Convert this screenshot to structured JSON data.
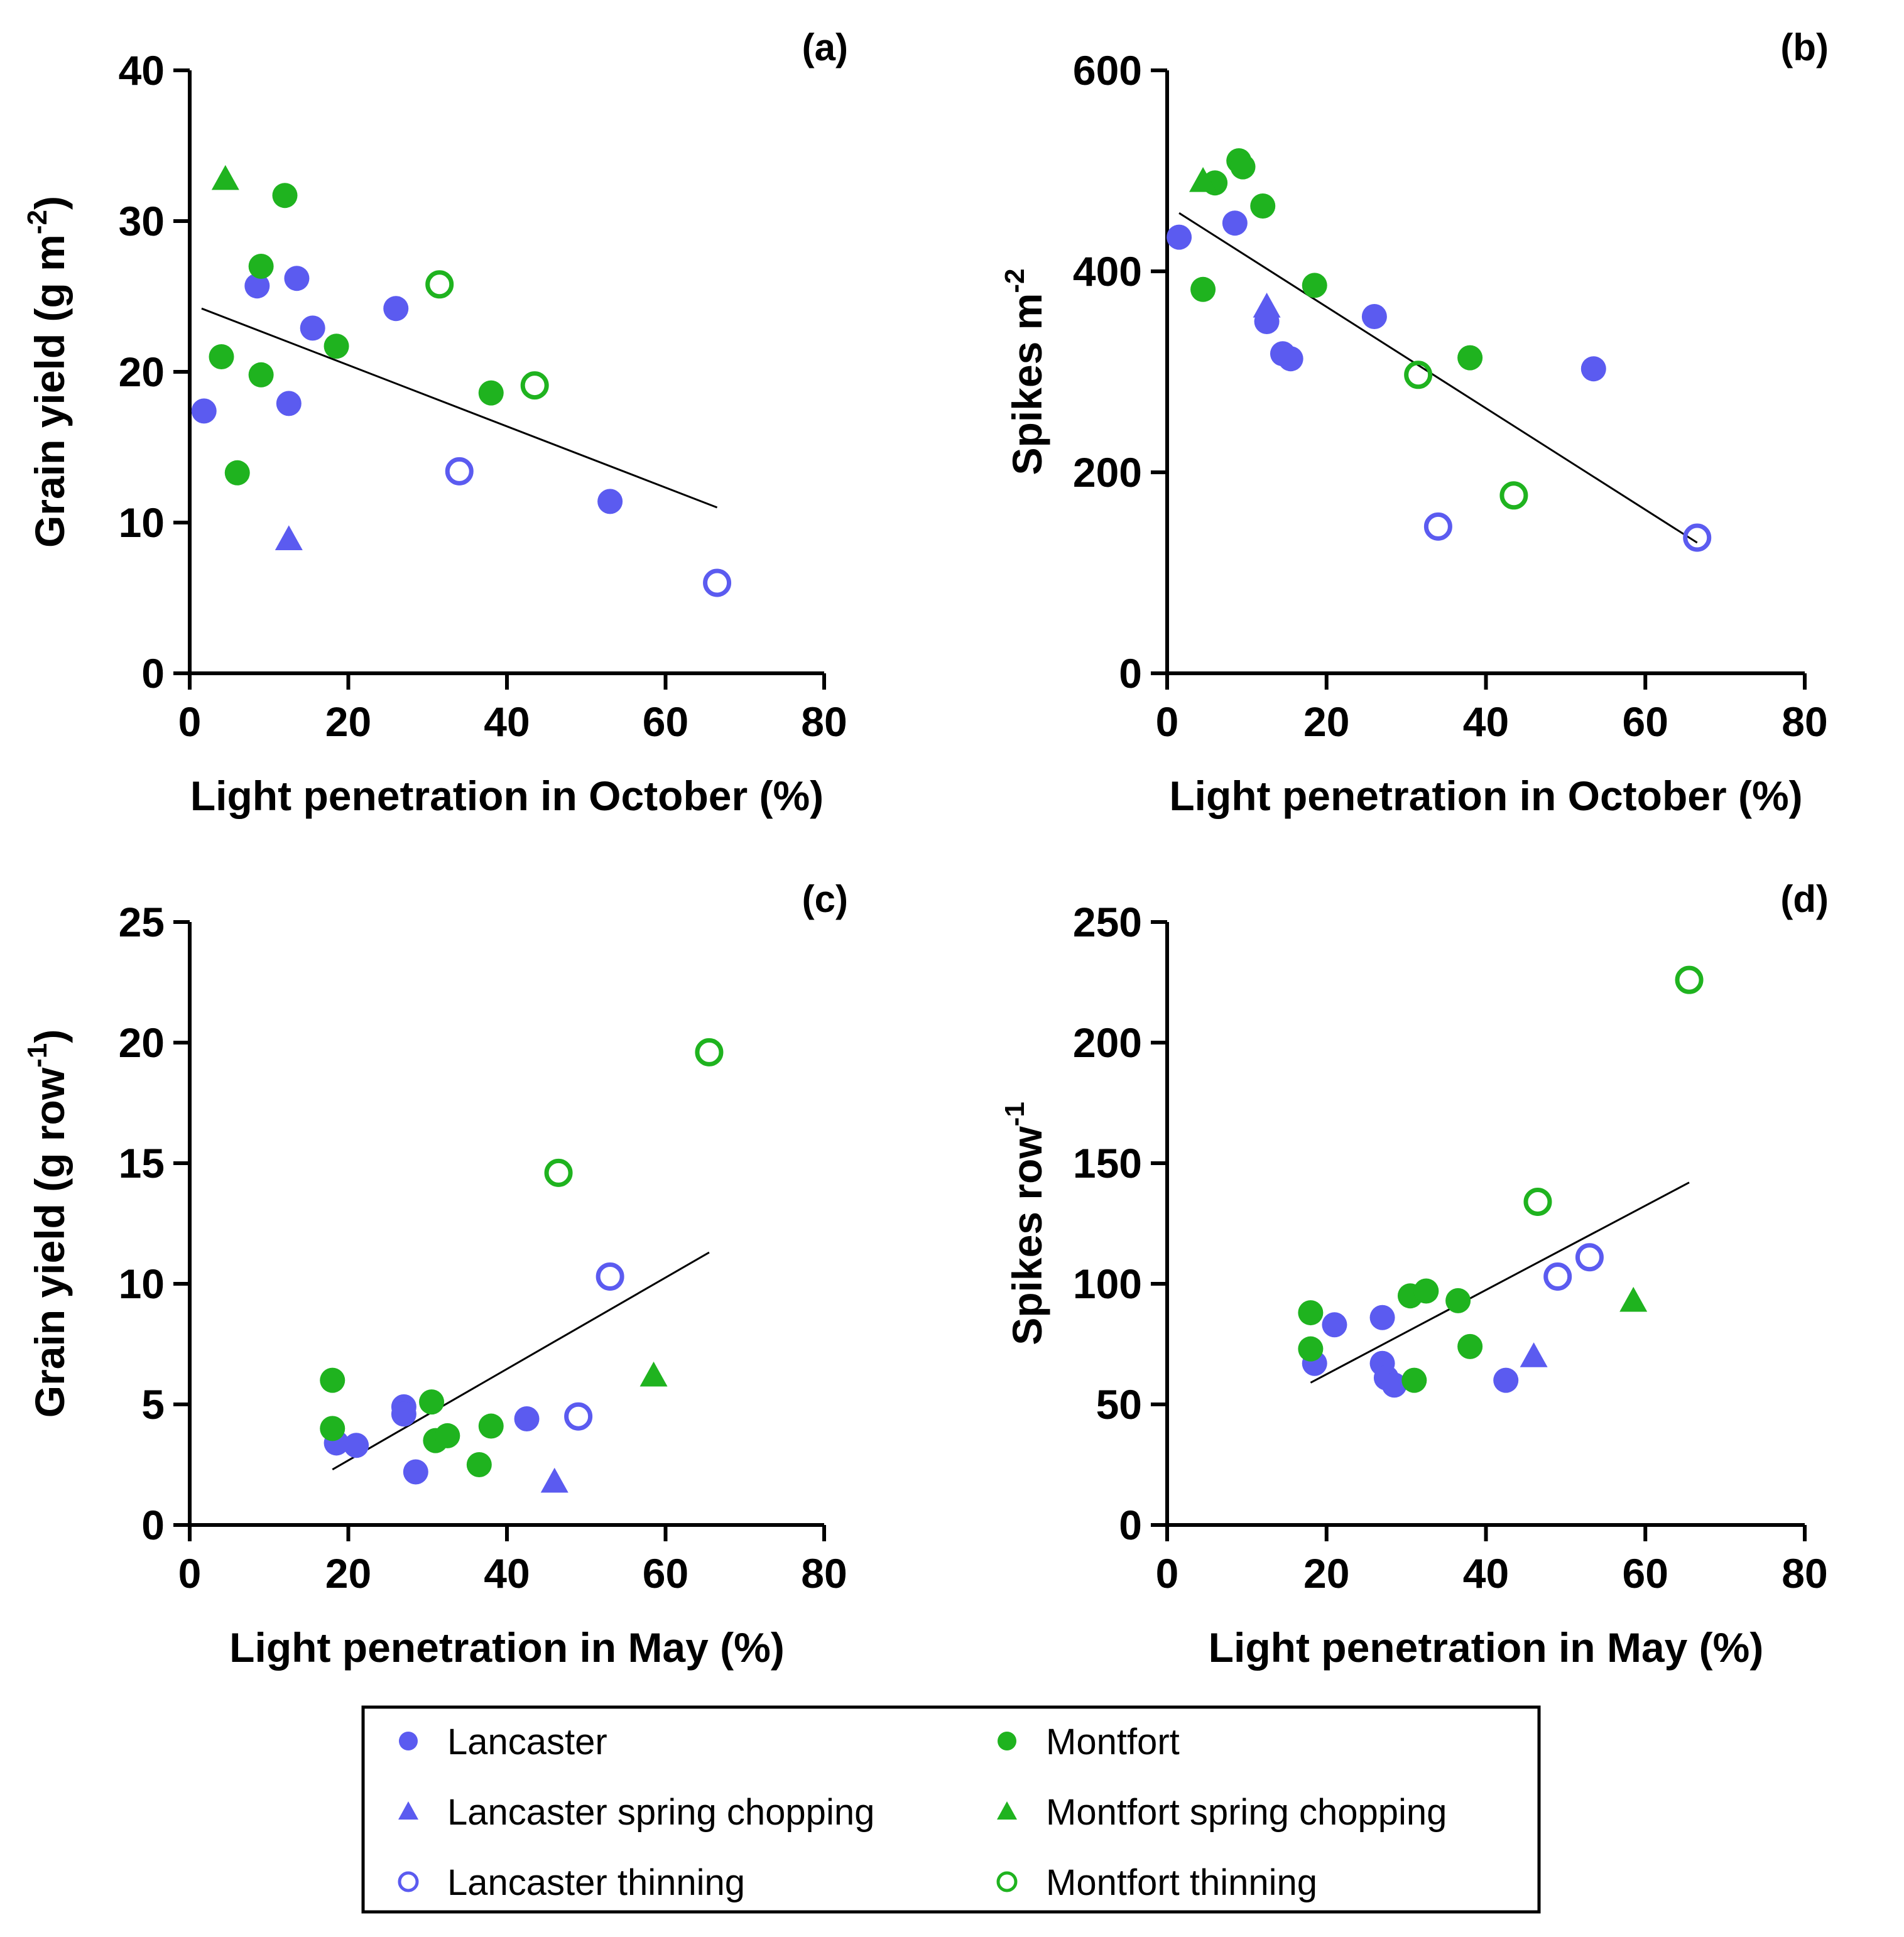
{
  "colors": {
    "lancaster": "#5b5bf0",
    "montfort": "#1fb31f",
    "axis": "#000000",
    "trend": "#000000"
  },
  "legend": {
    "entries": [
      {
        "key": "lancaster",
        "label": "Lancaster",
        "marker": "circle-filled",
        "color": "#5b5bf0"
      },
      {
        "key": "montfort",
        "label": "Montfort",
        "marker": "circle-filled",
        "color": "#1fb31f"
      },
      {
        "key": "lancaster_spring",
        "label": "Lancaster spring chopping",
        "marker": "triangle",
        "color": "#5b5bf0"
      },
      {
        "key": "montfort_spring",
        "label": "Montfort spring chopping",
        "marker": "triangle",
        "color": "#1fb31f"
      },
      {
        "key": "lancaster_thin",
        "label": "Lancaster thinning",
        "marker": "circle-open",
        "color": "#5b5bf0"
      },
      {
        "key": "montfort_thin",
        "label": "Montfort thinning",
        "marker": "circle-open",
        "color": "#1fb31f"
      }
    ]
  },
  "chart_data": [
    {
      "type": "scatter",
      "panel": "(a)",
      "xlabel": "Light penetration in October (%)",
      "ylabel_main": "Grain yield (g m",
      "ylabel_sup": "-2",
      "ylabel_end": ")",
      "xlim": [
        0,
        80
      ],
      "ylim": [
        0,
        40
      ],
      "xticks": [
        0,
        20,
        40,
        60,
        80
      ],
      "yticks": [
        0,
        10,
        20,
        30,
        40
      ],
      "trend": {
        "x": [
          1.5,
          66.5
        ],
        "y": [
          24.2,
          11.0
        ]
      },
      "series": [
        {
          "key": "lancaster",
          "points": [
            [
              1.8,
              17.4
            ],
            [
              8.5,
              25.7
            ],
            [
              13.5,
              26.2
            ],
            [
              15.5,
              22.9
            ],
            [
              12.5,
              17.9
            ],
            [
              26,
              24.2
            ],
            [
              53,
              11.4
            ]
          ]
        },
        {
          "key": "montfort",
          "points": [
            [
              12,
              31.7
            ],
            [
              9,
              27.0
            ],
            [
              4,
              21.0
            ],
            [
              9,
              19.8
            ],
            [
              18.5,
              21.7
            ],
            [
              6,
              13.3
            ],
            [
              38,
              18.6
            ]
          ]
        },
        {
          "key": "lancaster_spring",
          "points": [
            [
              12.5,
              8.9
            ]
          ]
        },
        {
          "key": "montfort_spring",
          "points": [
            [
              4.5,
              32.8
            ]
          ]
        },
        {
          "key": "lancaster_thin",
          "points": [
            [
              34,
              13.4
            ],
            [
              66.5,
              6.0
            ]
          ]
        },
        {
          "key": "montfort_thin",
          "points": [
            [
              31.5,
              25.8
            ],
            [
              43.5,
              19.1
            ]
          ]
        }
      ]
    },
    {
      "type": "scatter",
      "panel": "(b)",
      "xlabel": "Light penetration in October (%)",
      "ylabel_main": "Spikes m",
      "ylabel_sup": "-2",
      "ylabel_end": "",
      "xlim": [
        0,
        80
      ],
      "ylim": [
        0,
        600
      ],
      "xticks": [
        0,
        20,
        40,
        60,
        80
      ],
      "yticks": [
        0,
        200,
        400,
        600
      ],
      "trend": {
        "x": [
          1.5,
          66.5
        ],
        "y": [
          458,
          130
        ]
      },
      "series": [
        {
          "key": "lancaster",
          "points": [
            [
              1.5,
              434
            ],
            [
              8.5,
              448
            ],
            [
              12.5,
              350
            ],
            [
              14.5,
              318
            ],
            [
              15.5,
              313
            ],
            [
              26,
              355
            ],
            [
              53.5,
              303
            ]
          ]
        },
        {
          "key": "montfort",
          "points": [
            [
              9,
              510
            ],
            [
              9.5,
              504
            ],
            [
              6,
              488
            ],
            [
              12,
              465
            ],
            [
              4.5,
              382
            ],
            [
              18.5,
              386
            ],
            [
              38,
              314
            ]
          ]
        },
        {
          "key": "lancaster_spring",
          "points": [
            [
              12.5,
              365
            ]
          ]
        },
        {
          "key": "montfort_spring",
          "points": [
            [
              4.5,
              490
            ]
          ]
        },
        {
          "key": "lancaster_thin",
          "points": [
            [
              34,
              146
            ],
            [
              66.5,
              135
            ]
          ]
        },
        {
          "key": "montfort_thin",
          "points": [
            [
              31.5,
              297
            ],
            [
              43.5,
              177
            ]
          ]
        }
      ]
    },
    {
      "type": "scatter",
      "panel": "(c)",
      "xlabel": "Light penetration in May (%)",
      "ylabel_main": "Grain yield (g row",
      "ylabel_sup": "-1",
      "ylabel_end": ")",
      "xlim": [
        0,
        80
      ],
      "ylim": [
        0,
        25
      ],
      "xticks": [
        0,
        20,
        40,
        60,
        80
      ],
      "yticks": [
        0,
        5,
        10,
        15,
        20,
        25
      ],
      "trend": {
        "x": [
          18,
          65.5
        ],
        "y": [
          2.3,
          11.3
        ]
      },
      "series": [
        {
          "key": "lancaster",
          "points": [
            [
              18.5,
              3.4
            ],
            [
              21,
              3.3
            ],
            [
              27,
              4.9
            ],
            [
              27,
              4.6
            ],
            [
              28.5,
              2.2
            ],
            [
              42.5,
              4.4
            ]
          ]
        },
        {
          "key": "montfort",
          "points": [
            [
              18,
              6.0
            ],
            [
              18,
              4.0
            ],
            [
              30.5,
              5.1
            ],
            [
              31,
              3.5
            ],
            [
              32.5,
              3.7
            ],
            [
              36.5,
              2.5
            ],
            [
              38,
              4.1
            ]
          ]
        },
        {
          "key": "lancaster_spring",
          "points": [
            [
              46,
              1.8
            ]
          ]
        },
        {
          "key": "montfort_spring",
          "points": [
            [
              58.5,
              6.2
            ]
          ]
        },
        {
          "key": "lancaster_thin",
          "points": [
            [
              53,
              10.3
            ],
            [
              49,
              4.5
            ]
          ]
        },
        {
          "key": "montfort_thin",
          "points": [
            [
              46.5,
              14.6
            ],
            [
              65.5,
              19.6
            ]
          ]
        }
      ]
    },
    {
      "type": "scatter",
      "panel": "(d)",
      "xlabel": "Light penetration in May (%)",
      "ylabel_main": "Spikes row",
      "ylabel_sup": "-1",
      "ylabel_end": "",
      "xlim": [
        0,
        80
      ],
      "ylim": [
        0,
        250
      ],
      "xticks": [
        0,
        20,
        40,
        60,
        80
      ],
      "yticks": [
        0,
        50,
        100,
        150,
        200,
        250
      ],
      "trend": {
        "x": [
          18,
          65.5
        ],
        "y": [
          59,
          142
        ]
      },
      "series": [
        {
          "key": "lancaster",
          "points": [
            [
              18.5,
              67
            ],
            [
              21,
              83
            ],
            [
              27,
              86
            ],
            [
              27,
              67
            ],
            [
              27.5,
              61
            ],
            [
              28.5,
              58
            ],
            [
              42.5,
              60
            ]
          ]
        },
        {
          "key": "montfort",
          "points": [
            [
              18,
              88
            ],
            [
              18,
              73
            ],
            [
              30.5,
              95
            ],
            [
              32.5,
              97
            ],
            [
              36.5,
              93
            ],
            [
              31,
              60
            ],
            [
              38,
              74
            ]
          ]
        },
        {
          "key": "lancaster_spring",
          "points": [
            [
              46,
              70
            ]
          ]
        },
        {
          "key": "montfort_spring",
          "points": [
            [
              58.5,
              93
            ]
          ]
        },
        {
          "key": "lancaster_thin",
          "points": [
            [
              49,
              103
            ],
            [
              53,
              111
            ]
          ]
        },
        {
          "key": "montfort_thin",
          "points": [
            [
              46.5,
              134
            ],
            [
              65.5,
              226
            ]
          ]
        }
      ]
    }
  ]
}
